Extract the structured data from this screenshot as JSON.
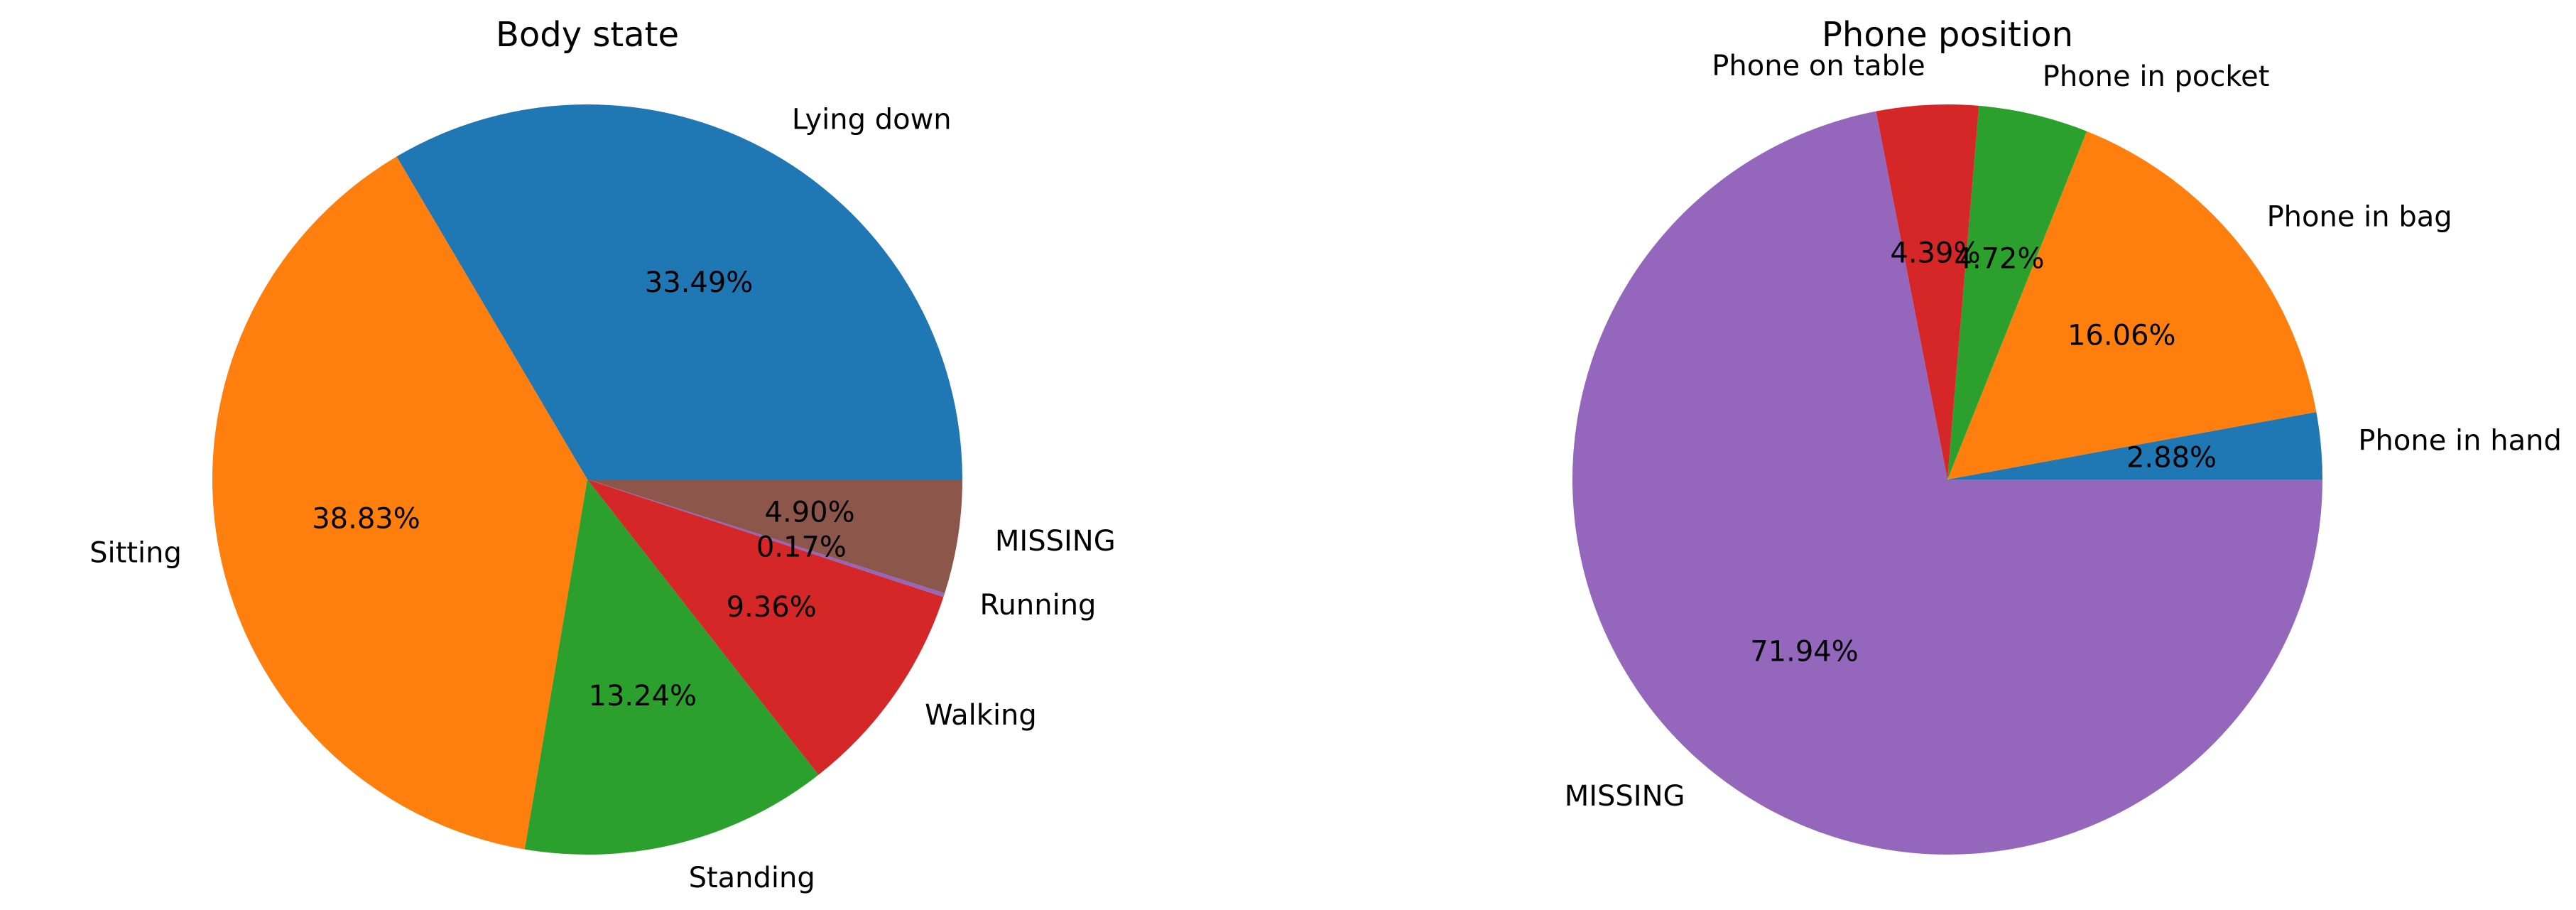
{
  "chart_data": [
    {
      "type": "pie",
      "title": "Body state",
      "start_angle": 0,
      "direction": "counterclockwise",
      "categories": [
        "Lying down",
        "Sitting",
        "Standing",
        "Walking",
        "Running",
        "MISSING"
      ],
      "values": [
        33.49,
        38.83,
        13.24,
        9.36,
        0.17,
        4.9
      ],
      "value_labels": [
        "33.49%",
        "38.83%",
        "13.24%",
        "9.36%",
        "0.17%",
        "4.90%"
      ],
      "colors": [
        "#1f77b4",
        "#ff7f0e",
        "#2ca02c",
        "#d62728",
        "#9467bd",
        "#8c564b"
      ]
    },
    {
      "type": "pie",
      "title": "Phone position",
      "start_angle": 0,
      "direction": "counterclockwise",
      "categories": [
        "Phone in hand",
        "Phone in bag",
        "Phone in pocket",
        "Phone on table",
        "MISSING"
      ],
      "values": [
        2.88,
        16.06,
        4.72,
        4.39,
        71.94
      ],
      "value_labels": [
        "2.88%",
        "16.06%",
        "4.72%",
        "4.39%",
        "71.94%"
      ],
      "colors": [
        "#1f77b4",
        "#ff7f0e",
        "#2ca02c",
        "#d62728",
        "#9467bd"
      ]
    }
  ]
}
